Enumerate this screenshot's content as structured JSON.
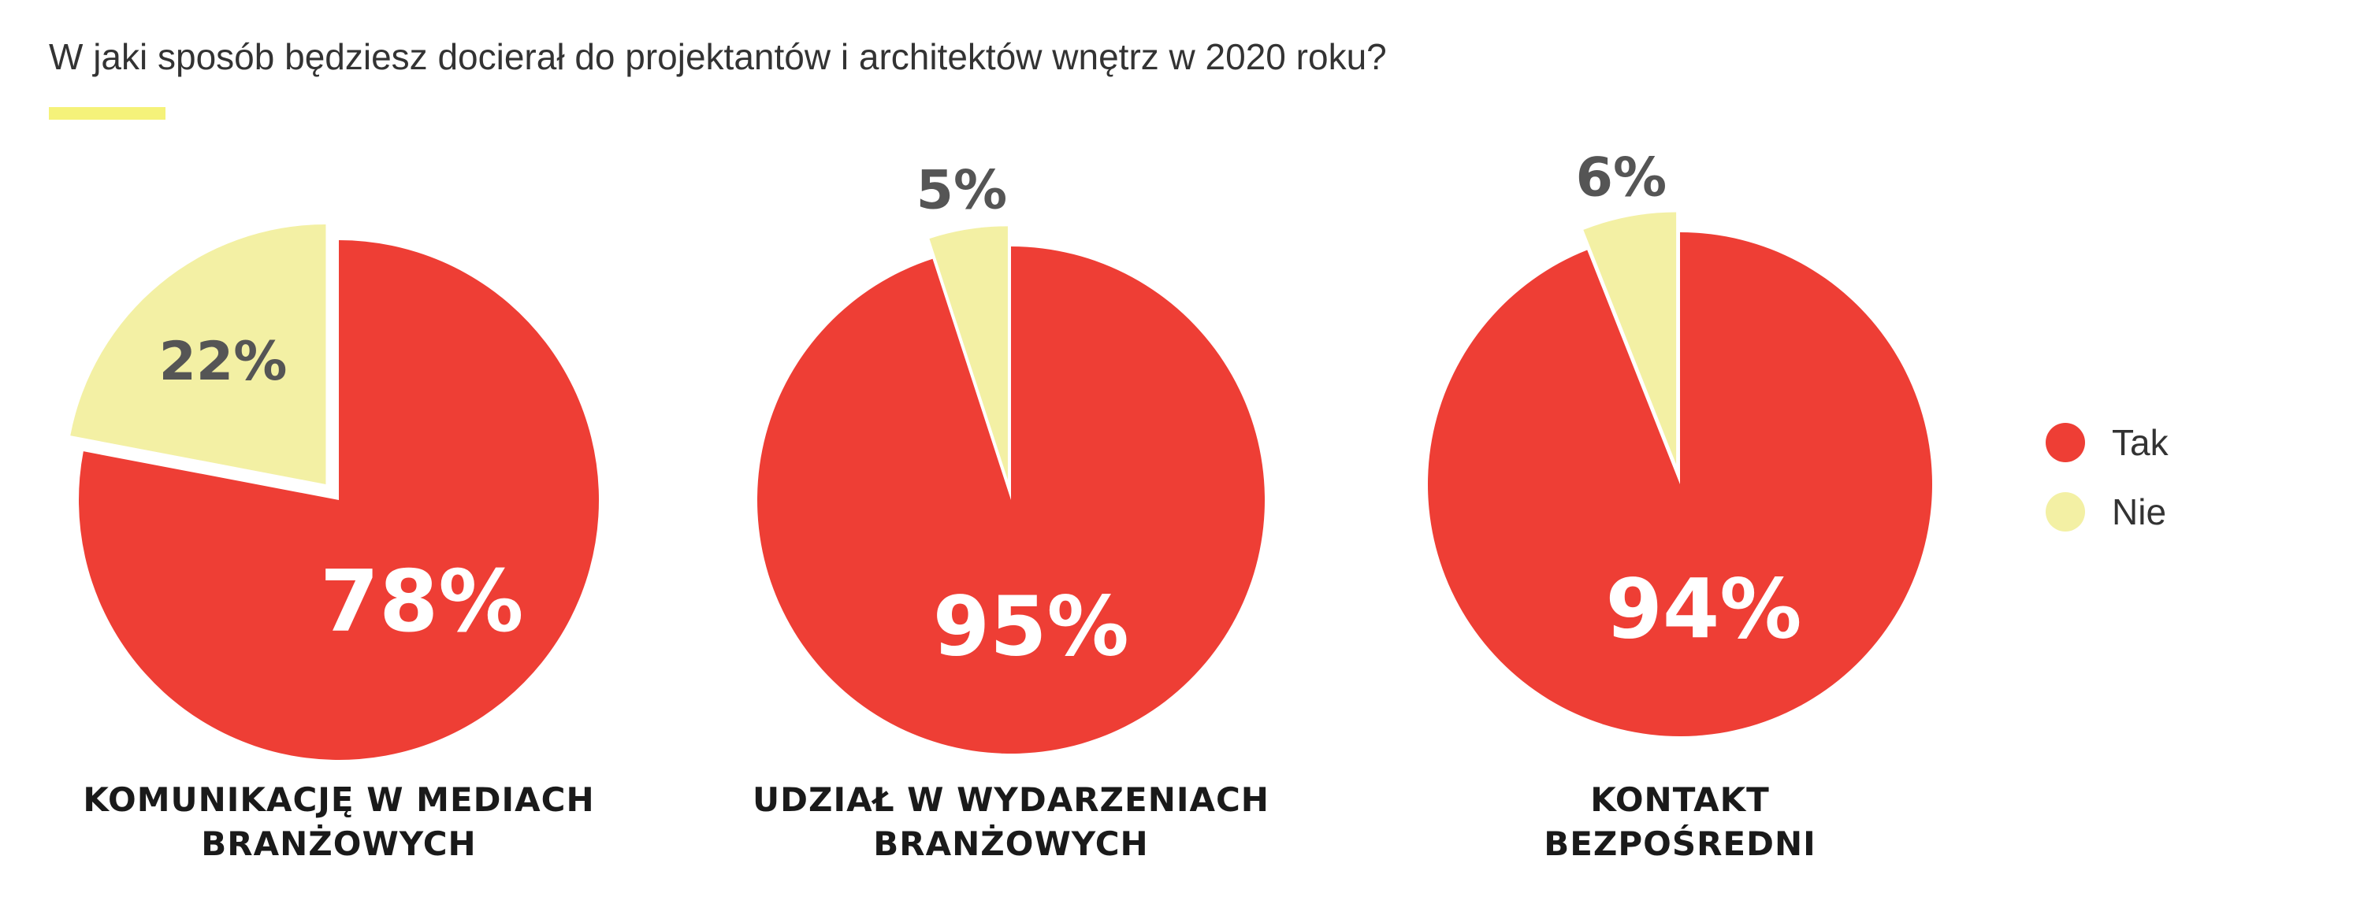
{
  "title": "W jaki sposób będziesz docierał do projektantów i architektów wnętrz w 2020 roku?",
  "colors": {
    "tak": "#ee3e35",
    "nie": "#f3f0a4",
    "accent": "#f5f27a",
    "text": "#333333"
  },
  "legend": [
    {
      "label": "Tak",
      "color": "#ee3e35"
    },
    {
      "label": "Nie",
      "color": "#f3f0a4"
    }
  ],
  "chart_data": [
    {
      "type": "pie",
      "category_lines": [
        "KOMUNIKACJĘ W MEDIACH",
        "BRANŻOWYCH"
      ],
      "slices": [
        {
          "name": "Tak",
          "value": 78,
          "label": "78%"
        },
        {
          "name": "Nie",
          "value": 22,
          "label": "22%"
        }
      ]
    },
    {
      "type": "pie",
      "category_lines": [
        "UDZIAŁ W WYDARZENIACH",
        "BRANŻOWYCH"
      ],
      "slices": [
        {
          "name": "Tak",
          "value": 95,
          "label": "95%"
        },
        {
          "name": "Nie",
          "value": 5,
          "label": "5%"
        }
      ]
    },
    {
      "type": "pie",
      "category_lines": [
        "KONTAKT",
        "BEZPOŚREDNI"
      ],
      "slices": [
        {
          "name": "Tak",
          "value": 94,
          "label": "94%"
        },
        {
          "name": "Nie",
          "value": 6,
          "label": "6%"
        }
      ]
    }
  ]
}
